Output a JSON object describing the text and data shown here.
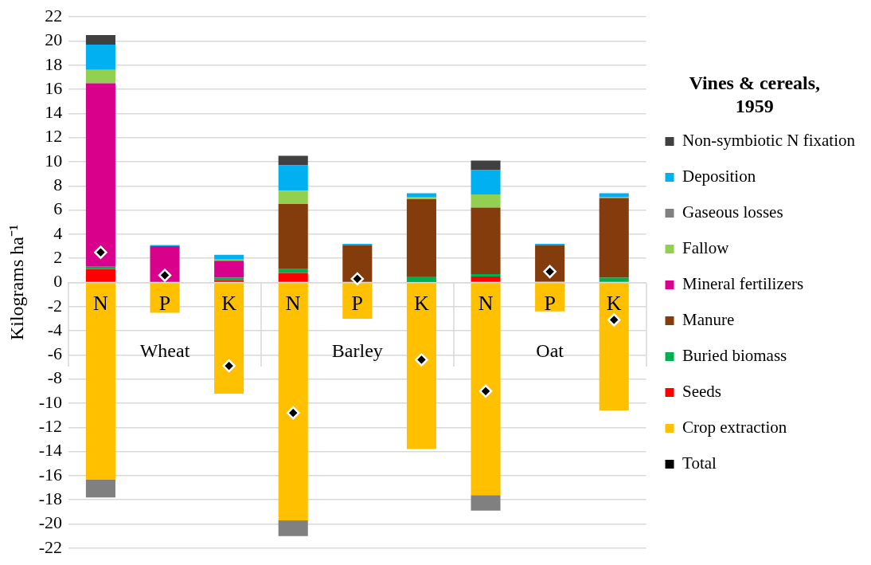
{
  "chart_data": {
    "type": "bar",
    "stacked": true,
    "ylabel": "Kilograms ha⁻¹",
    "legend_title": "Vines & cereals, 1959",
    "legend": "right",
    "grid": "y",
    "categories": [
      "N",
      "P",
      "K",
      "N",
      "P",
      "K",
      "N",
      "P",
      "K"
    ],
    "annotations": [
      "Wheat",
      "Barley",
      "Oat"
    ],
    "ylim": [
      -22,
      22
    ],
    "yticks": [
      -22,
      -20,
      -18,
      -16,
      -14,
      -12,
      -10,
      -8,
      -6,
      -4,
      -2,
      0,
      2,
      4,
      6,
      8,
      10,
      12,
      14,
      16,
      18,
      20,
      22
    ],
    "series": [
      {
        "name": "Crop extraction",
        "color": "#ffc000",
        "values": [
          -16.3,
          -2.5,
          -9.2,
          -19.7,
          -3.0,
          -13.8,
          -17.6,
          -2.4,
          -10.6
        ]
      },
      {
        "name": "Seeds",
        "color": "#ff0000",
        "values": [
          1.1,
          0.1,
          0.2,
          0.8,
          null,
          0.1,
          0.5,
          0,
          0
        ]
      },
      {
        "name": "Buried biomass",
        "color": "#00b050",
        "values": [
          0.2,
          0,
          0.2,
          0.3,
          0,
          0.4,
          0.2,
          0.1,
          0.4
        ]
      },
      {
        "name": "Manure",
        "color": "#843c0c",
        "values": [
          0,
          0,
          0,
          5.4,
          3.1,
          6.4,
          5.5,
          3.0,
          6.6
        ]
      },
      {
        "name": "Mineral fertilizers",
        "color": "#d9008c",
        "values": [
          15.2,
          2.9,
          1.4,
          0,
          0,
          0,
          0,
          0,
          0
        ]
      },
      {
        "name": "Fallow",
        "color": "#92d050",
        "values": [
          1.1,
          0,
          0.1,
          1.1,
          0,
          0.2,
          1.1,
          0,
          0.1
        ]
      },
      {
        "name": "Gaseous losses",
        "color": "#808080",
        "values": [
          -1.5,
          0,
          0,
          -1.3,
          0,
          0,
          -1.3,
          0,
          0
        ]
      },
      {
        "name": "Deposition",
        "color": "#00b0f0",
        "values": [
          2.1,
          0.1,
          0.4,
          2.1,
          0.1,
          0.3,
          2.0,
          0.1,
          0.3
        ]
      },
      {
        "name": "Non-symbiotic N fixation",
        "color": "#404040",
        "values": [
          0.8,
          0,
          0,
          0.8,
          0,
          0,
          0.8,
          0,
          0
        ]
      },
      {
        "name": "Total",
        "type": "scatter",
        "marker": "diamond",
        "color": "#000000",
        "values": [
          2.5,
          0.6,
          -6.9,
          -10.8,
          0.3,
          -6.4,
          -9.0,
          0.9,
          -3.1
        ]
      }
    ]
  }
}
